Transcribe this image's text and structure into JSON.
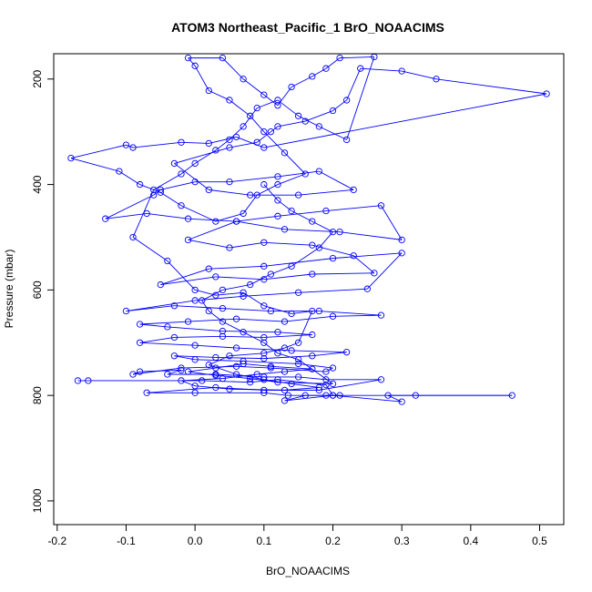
{
  "chart_data": {
    "type": "scatter",
    "title": "ATOM3 Northeast_Pacific_1 BrO_NOAACIMS",
    "xlabel": "BrO_NOAACIMS",
    "ylabel": "Pressure (mbar)",
    "xlim": [
      -0.205,
      0.535
    ],
    "ylim": [
      1045,
      152
    ],
    "y_reversed": true,
    "x_ticks": [
      -0.2,
      -0.1,
      0.0,
      0.1,
      0.2,
      0.3,
      0.4,
      0.5
    ],
    "x_tick_labels": [
      "-0.2",
      "-0.1",
      "0.0",
      "0.1",
      "0.2",
      "0.3",
      "0.4",
      "0.5"
    ],
    "y_ticks": [
      200,
      400,
      600,
      800,
      1000
    ],
    "y_tick_labels": [
      "200",
      "400",
      "600",
      "800",
      "1000"
    ],
    "grid": false,
    "connect_points": true,
    "series": [
      {
        "color": "#0000ff",
        "points": [
          [
            -0.17,
            772
          ],
          [
            -0.155,
            772
          ],
          [
            0.01,
            772
          ],
          [
            0.08,
            775
          ],
          [
            0.12,
            770
          ],
          [
            0.19,
            780
          ],
          [
            0.2,
            800
          ],
          [
            0.46,
            800
          ],
          [
            0.32,
            800
          ],
          [
            0.28,
            800
          ],
          [
            0.3,
            812
          ],
          [
            0.2,
            800
          ],
          [
            0.13,
            810
          ],
          [
            0.16,
            800
          ],
          [
            0.19,
            800
          ],
          [
            0.21,
            800
          ],
          [
            0.135,
            800
          ],
          [
            0.1,
            795
          ],
          [
            0.0,
            795
          ],
          [
            -0.07,
            795
          ],
          [
            0.03,
            785
          ],
          [
            0.1,
            790
          ],
          [
            0.18,
            790
          ],
          [
            0.27,
            770
          ],
          [
            0.19,
            770
          ],
          [
            0.15,
            765
          ],
          [
            0.1,
            765
          ],
          [
            0.03,
            760
          ],
          [
            -0.04,
            760
          ],
          [
            -0.02,
            752
          ],
          [
            -0.08,
            755
          ],
          [
            -0.09,
            760
          ],
          [
            -0.02,
            748
          ],
          [
            0.06,
            745
          ],
          [
            0.11,
            748
          ],
          [
            0.19,
            755
          ],
          [
            0.2,
            748
          ],
          [
            0.15,
            740
          ],
          [
            0.07,
            735
          ],
          [
            0.0,
            732
          ],
          [
            -0.03,
            725
          ],
          [
            0.03,
            728
          ],
          [
            0.1,
            730
          ],
          [
            0.17,
            725
          ],
          [
            0.22,
            718
          ],
          [
            0.14,
            715
          ],
          [
            0.06,
            710
          ],
          [
            0.0,
            705
          ],
          [
            -0.08,
            700
          ],
          [
            -0.03,
            690
          ],
          [
            0.04,
            688
          ],
          [
            0.1,
            690
          ],
          [
            0.17,
            685
          ],
          [
            0.12,
            680
          ],
          [
            0.04,
            678
          ],
          [
            -0.04,
            670
          ],
          [
            -0.08,
            665
          ],
          [
            -0.01,
            660
          ],
          [
            0.06,
            655
          ],
          [
            0.13,
            660
          ],
          [
            0.2,
            650
          ],
          [
            0.27,
            648
          ],
          [
            0.18,
            640
          ],
          [
            0.11,
            640
          ],
          [
            0.04,
            635
          ],
          [
            -0.03,
            630
          ],
          [
            -0.1,
            640
          ],
          [
            0.0,
            620
          ],
          [
            0.07,
            612
          ],
          [
            0.15,
            605
          ],
          [
            0.25,
            598
          ],
          [
            0.3,
            530
          ],
          [
            0.2,
            540
          ],
          [
            0.1,
            555
          ],
          [
            0.02,
            560
          ],
          [
            -0.05,
            590
          ],
          [
            0.03,
            575
          ],
          [
            0.1,
            580
          ],
          [
            0.17,
            570
          ],
          [
            0.26,
            568
          ],
          [
            0.23,
            535
          ],
          [
            0.17,
            515
          ],
          [
            0.1,
            510
          ],
          [
            0.05,
            520
          ],
          [
            -0.01,
            505
          ],
          [
            0.06,
            470
          ],
          [
            0.12,
            460
          ],
          [
            0.19,
            450
          ],
          [
            0.27,
            440
          ],
          [
            0.3,
            505
          ],
          [
            0.21,
            490
          ],
          [
            0.13,
            485
          ],
          [
            0.06,
            470
          ],
          [
            -0.01,
            465
          ],
          [
            -0.07,
            455
          ],
          [
            -0.13,
            465
          ],
          [
            -0.06,
            420
          ],
          [
            -0.05,
            410
          ],
          [
            0.0,
            395
          ],
          [
            0.05,
            395
          ],
          [
            0.12,
            385
          ],
          [
            0.18,
            375
          ],
          [
            0.23,
            410
          ],
          [
            0.15,
            420
          ],
          [
            0.08,
            420
          ],
          [
            0.02,
            410
          ],
          [
            -0.03,
            360
          ],
          [
            0.05,
            330
          ],
          [
            0.09,
            320
          ],
          [
            0.11,
            300
          ],
          [
            0.12,
            290
          ],
          [
            0.16,
            280
          ],
          [
            0.2,
            260
          ],
          [
            0.22,
            240
          ],
          [
            0.24,
            180
          ],
          [
            0.3,
            185
          ],
          [
            0.35,
            200
          ],
          [
            0.51,
            228
          ],
          [
            0.1,
            330
          ],
          [
            0.06,
            310
          ],
          [
            0.02,
            322
          ],
          [
            -0.02,
            320
          ],
          [
            -0.09,
            330
          ],
          [
            -0.1,
            325
          ],
          [
            -0.18,
            350
          ],
          [
            -0.11,
            375
          ],
          [
            -0.08,
            400
          ],
          [
            -0.05,
            415
          ],
          [
            -0.02,
            440
          ],
          [
            0.03,
            470
          ],
          [
            0.07,
            455
          ],
          [
            0.09,
            420
          ],
          [
            0.12,
            400
          ],
          [
            0.16,
            380
          ],
          [
            0.13,
            340
          ],
          [
            0.1,
            300
          ],
          [
            0.08,
            270
          ],
          [
            0.05,
            240
          ],
          [
            0.02,
            222
          ],
          [
            0.0,
            175
          ],
          [
            -0.01,
            160
          ],
          [
            0.04,
            160
          ],
          [
            0.07,
            200
          ],
          [
            0.1,
            230
          ],
          [
            0.12,
            250
          ],
          [
            0.14,
            215
          ],
          [
            0.17,
            195
          ],
          [
            0.19,
            180
          ],
          [
            0.21,
            160
          ],
          [
            0.26,
            158
          ],
          [
            0.22,
            315
          ],
          [
            0.18,
            290
          ],
          [
            0.15,
            270
          ],
          [
            0.12,
            240
          ],
          [
            0.09,
            255
          ],
          [
            0.07,
            290
          ],
          [
            0.05,
            315
          ],
          [
            0.03,
            335
          ],
          [
            0.0,
            360
          ],
          [
            -0.02,
            380
          ],
          [
            -0.06,
            410
          ],
          [
            -0.09,
            500
          ],
          [
            -0.04,
            545
          ],
          [
            0.0,
            600
          ],
          [
            0.03,
            610
          ],
          [
            0.07,
            605
          ],
          [
            0.1,
            630
          ],
          [
            0.14,
            645
          ],
          [
            0.17,
            640
          ],
          [
            0.15,
            700
          ],
          [
            0.13,
            710
          ],
          [
            0.1,
            720
          ],
          [
            0.05,
            725
          ],
          [
            0.02,
            742
          ],
          [
            0.06,
            760
          ],
          [
            0.1,
            770
          ],
          [
            0.14,
            778
          ],
          [
            0.18,
            785
          ],
          [
            0.13,
            790
          ],
          [
            0.05,
            788
          ],
          [
            0.0,
            782
          ],
          [
            -0.02,
            772
          ],
          [
            0.04,
            768
          ],
          [
            0.09,
            760
          ],
          [
            0.13,
            755
          ],
          [
            0.17,
            750
          ],
          [
            0.11,
            745
          ],
          [
            0.07,
            740
          ],
          [
            0.03,
            748
          ],
          [
            -0.01,
            755
          ],
          [
            0.03,
            762
          ],
          [
            0.08,
            768
          ],
          [
            0.12,
            775
          ],
          [
            0.2,
            778
          ],
          [
            0.15,
            732
          ],
          [
            0.12,
            720
          ],
          [
            0.1,
            700
          ],
          [
            0.07,
            680
          ],
          [
            0.04,
            660
          ],
          [
            0.02,
            640
          ],
          [
            0.01,
            620
          ],
          [
            0.04,
            600
          ],
          [
            0.08,
            590
          ],
          [
            0.11,
            570
          ],
          [
            0.14,
            555
          ],
          [
            0.18,
            520
          ],
          [
            0.2,
            490
          ],
          [
            0.17,
            470
          ],
          [
            0.14,
            450
          ],
          [
            0.12,
            430
          ],
          [
            0.1,
            400
          ]
        ]
      }
    ]
  }
}
